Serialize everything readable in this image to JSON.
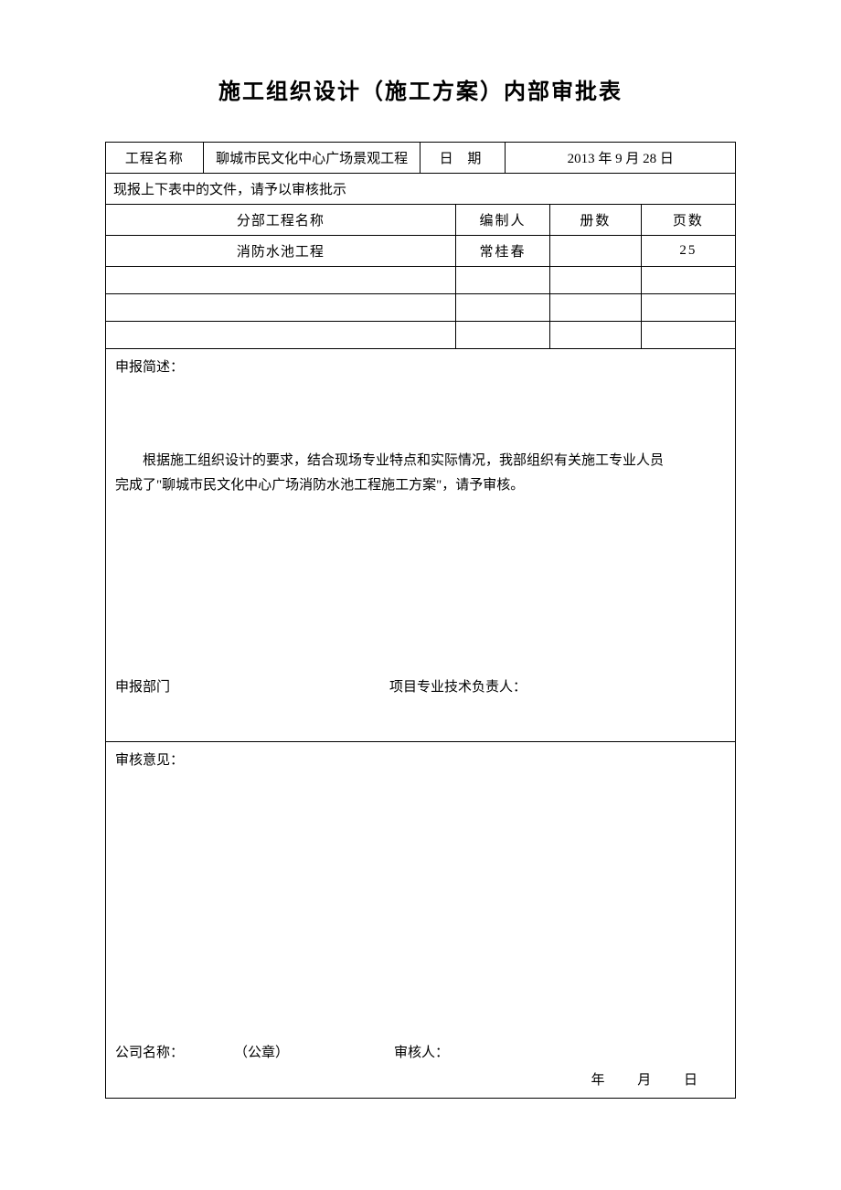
{
  "title": "施工组织设计（施工方案）内部审批表",
  "row1": {
    "label1": "工程名称",
    "value1": "聊城市民文化中心广场景观工程",
    "label2": "日 期",
    "value2": "2013 年 9 月 28 日"
  },
  "row2": {
    "text": "现报上下表中的文件，请予以审核批示"
  },
  "row3": {
    "h1": "分部工程名称",
    "h2": "编制人",
    "h3": "册数",
    "h4": "页数"
  },
  "row4": {
    "c1": "消防水池工程",
    "c2": "常桂春",
    "c3": "",
    "c4": "25"
  },
  "desc": {
    "label": "申报简述：",
    "line1": "根据施工组织设计的要求，结合现场专业特点和实际情况，我部组织有关施工专业人员",
    "line2": "完成了\"聊城市民文化中心广场消防水池工程施工方案\"，请予审核。",
    "dept_label": "申报部门",
    "tech_label": "项目专业技术负责人："
  },
  "review": {
    "label": "审核意见：",
    "company_label": "公司名称：",
    "seal": "（公章）",
    "reviewer_label": "审核人：",
    "date_template": "年  月  日"
  }
}
